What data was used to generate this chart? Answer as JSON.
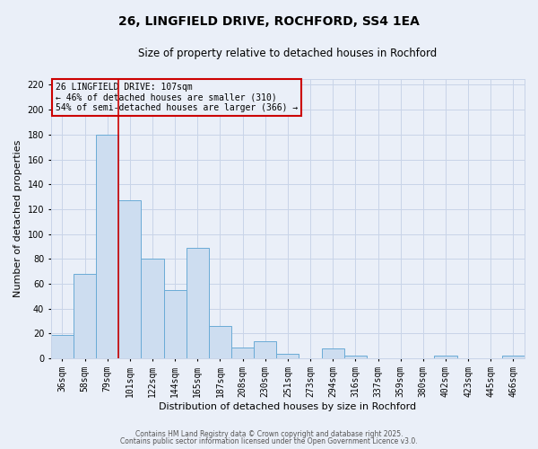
{
  "title": "26, LINGFIELD DRIVE, ROCHFORD, SS4 1EA",
  "subtitle": "Size of property relative to detached houses in Rochford",
  "xlabel": "Distribution of detached houses by size in Rochford",
  "ylabel": "Number of detached properties",
  "bin_labels": [
    "36sqm",
    "58sqm",
    "79sqm",
    "101sqm",
    "122sqm",
    "144sqm",
    "165sqm",
    "187sqm",
    "208sqm",
    "230sqm",
    "251sqm",
    "273sqm",
    "294sqm",
    "316sqm",
    "337sqm",
    "359sqm",
    "380sqm",
    "402sqm",
    "423sqm",
    "445sqm",
    "466sqm"
  ],
  "bar_values": [
    19,
    68,
    180,
    127,
    80,
    55,
    89,
    26,
    9,
    14,
    4,
    0,
    8,
    2,
    0,
    0,
    0,
    2,
    0,
    0,
    2
  ],
  "bar_color": "#cdddf0",
  "bar_edge_color": "#6aabd6",
  "vline_color": "#cc0000",
  "vline_x_index": 2.5,
  "annotation_text": "26 LINGFIELD DRIVE: 107sqm\n← 46% of detached houses are smaller (310)\n54% of semi-detached houses are larger (366) →",
  "annotation_box_edge": "#cc0000",
  "ylim": [
    0,
    225
  ],
  "yticks": [
    0,
    20,
    40,
    60,
    80,
    100,
    120,
    140,
    160,
    180,
    200,
    220
  ],
  "grid_color": "#c8d4e8",
  "bg_color": "#eaeff8",
  "footer1": "Contains HM Land Registry data © Crown copyright and database right 2025.",
  "footer2": "Contains public sector information licensed under the Open Government Licence v3.0.",
  "title_fontsize": 10,
  "subtitle_fontsize": 8.5,
  "xlabel_fontsize": 8,
  "ylabel_fontsize": 8,
  "tick_fontsize": 7,
  "annotation_fontsize": 7,
  "footer_fontsize": 5.5
}
